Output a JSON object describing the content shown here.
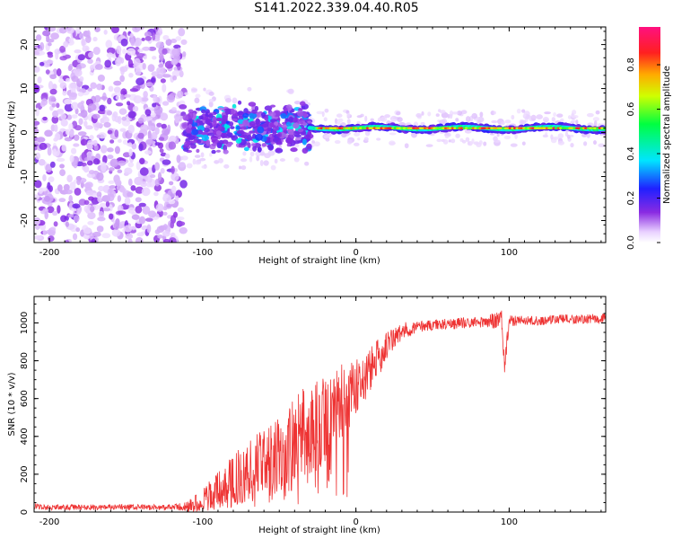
{
  "title": "S141.2022.339.04.40.R05",
  "chart_data": [
    {
      "type": "heatmap",
      "title": "",
      "xlabel": "Height of straight line (km)",
      "ylabel": "Frequency (Hz)",
      "xlim": [
        -210,
        163
      ],
      "ylim": [
        -25,
        24
      ],
      "x_ticks": [
        -200,
        -100,
        0,
        100
      ],
      "x_tick_labels": [
        "-200",
        "-100",
        "0",
        "100"
      ],
      "y_ticks": [
        20,
        10,
        0,
        -10,
        -20
      ],
      "y_tick_labels": [
        "20",
        "10",
        "0",
        "-10",
        "-20"
      ],
      "colorbar": {
        "label": "Normalized spectral amplitude",
        "range": [
          0,
          0.97
        ],
        "ticks": [
          0,
          0.2,
          0.4,
          0.6,
          0.8
        ],
        "tick_labels": [
          "0.0",
          "0.2",
          "0.4",
          "0.6",
          "0.8"
        ],
        "colormap": "rainbow (purple-blue-cyan-green-yellow-red-magenta)"
      },
      "regions": [
        {
          "x_range": [
            -210,
            -112
          ],
          "freq_range": [
            -25,
            24
          ],
          "amplitude": 0.05,
          "description": "broadband noise"
        },
        {
          "x_range": [
            -112,
            -30
          ],
          "freq_range": [
            -6,
            6
          ],
          "amplitude": 0.15,
          "description": "scattered signal"
        },
        {
          "x_range": [
            -30,
            163
          ],
          "freq_range": [
            -1,
            2
          ],
          "amplitude": 0.85,
          "description": "narrow carrier line near 1 Hz"
        }
      ],
      "grid": false
    },
    {
      "type": "line",
      "title": "",
      "xlabel": "Height of straight line (km)",
      "ylabel": "SNR (10 * v/v)",
      "xlim": [
        -210,
        163
      ],
      "ylim": [
        0,
        1140
      ],
      "x_ticks": [
        -200,
        -100,
        0,
        100
      ],
      "x_tick_labels": [
        "-200",
        "-100",
        "0",
        "100"
      ],
      "y_ticks": [
        0,
        200,
        400,
        600,
        800,
        1000
      ],
      "y_tick_labels": [
        "0",
        "200",
        "400",
        "600",
        "800",
        "1000"
      ],
      "series": [
        {
          "name": "SNR",
          "color": "#ee3333",
          "x": [
            -210,
            -200,
            -180,
            -160,
            -140,
            -120,
            -110,
            -100,
            -95,
            -90,
            -85,
            -80,
            -75,
            -70,
            -65,
            -60,
            -55,
            -50,
            -45,
            -40,
            -35,
            -30,
            -25,
            -20,
            -15,
            -10,
            -5,
            0,
            5,
            10,
            15,
            20,
            25,
            30,
            35,
            40,
            50,
            60,
            70,
            80,
            90,
            95,
            97,
            100,
            110,
            120,
            130,
            140,
            150,
            163
          ],
          "values": [
            30,
            25,
            25,
            25,
            25,
            25,
            28,
            60,
            90,
            110,
            140,
            160,
            200,
            220,
            240,
            260,
            280,
            300,
            340,
            360,
            400,
            440,
            460,
            500,
            550,
            580,
            620,
            660,
            700,
            760,
            820,
            880,
            920,
            950,
            970,
            980,
            990,
            995,
            1000,
            1005,
            1010,
            1020,
            780,
            1010,
            1015,
            1010,
            1020,
            1020,
            1020,
            1025
          ],
          "noise_amplitude": [
            15,
            15,
            15,
            15,
            15,
            15,
            30,
            60,
            80,
            100,
            120,
            140,
            150,
            160,
            170,
            180,
            190,
            200,
            220,
            240,
            260,
            260,
            260,
            240,
            220,
            200,
            180,
            160,
            140,
            120,
            100,
            80,
            60,
            50,
            40,
            30,
            30,
            30,
            30,
            30,
            40,
            60,
            60,
            30,
            25,
            25,
            25,
            25,
            25,
            25
          ]
        }
      ],
      "grid": false
    }
  ]
}
